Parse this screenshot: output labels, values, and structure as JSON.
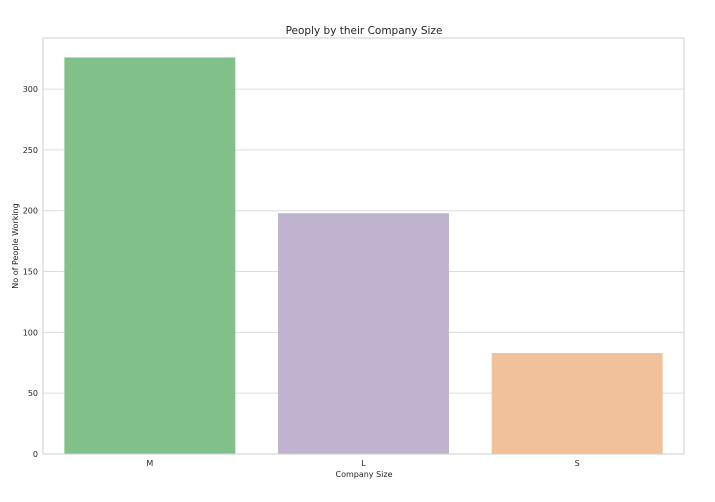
{
  "chart_data": {
    "type": "bar",
    "title": "Peoply by their Company Size",
    "xlabel": "Company Size",
    "ylabel": "No of People Working",
    "categories": [
      "M",
      "L",
      "S"
    ],
    "values": [
      326,
      198,
      83
    ],
    "colors": [
      "#81c08b",
      "#c0b3cf",
      "#f1c19b"
    ],
    "yticks": [
      0,
      50,
      100,
      150,
      200,
      250,
      300
    ],
    "ylim": [
      0,
      342
    ],
    "grid": true
  }
}
